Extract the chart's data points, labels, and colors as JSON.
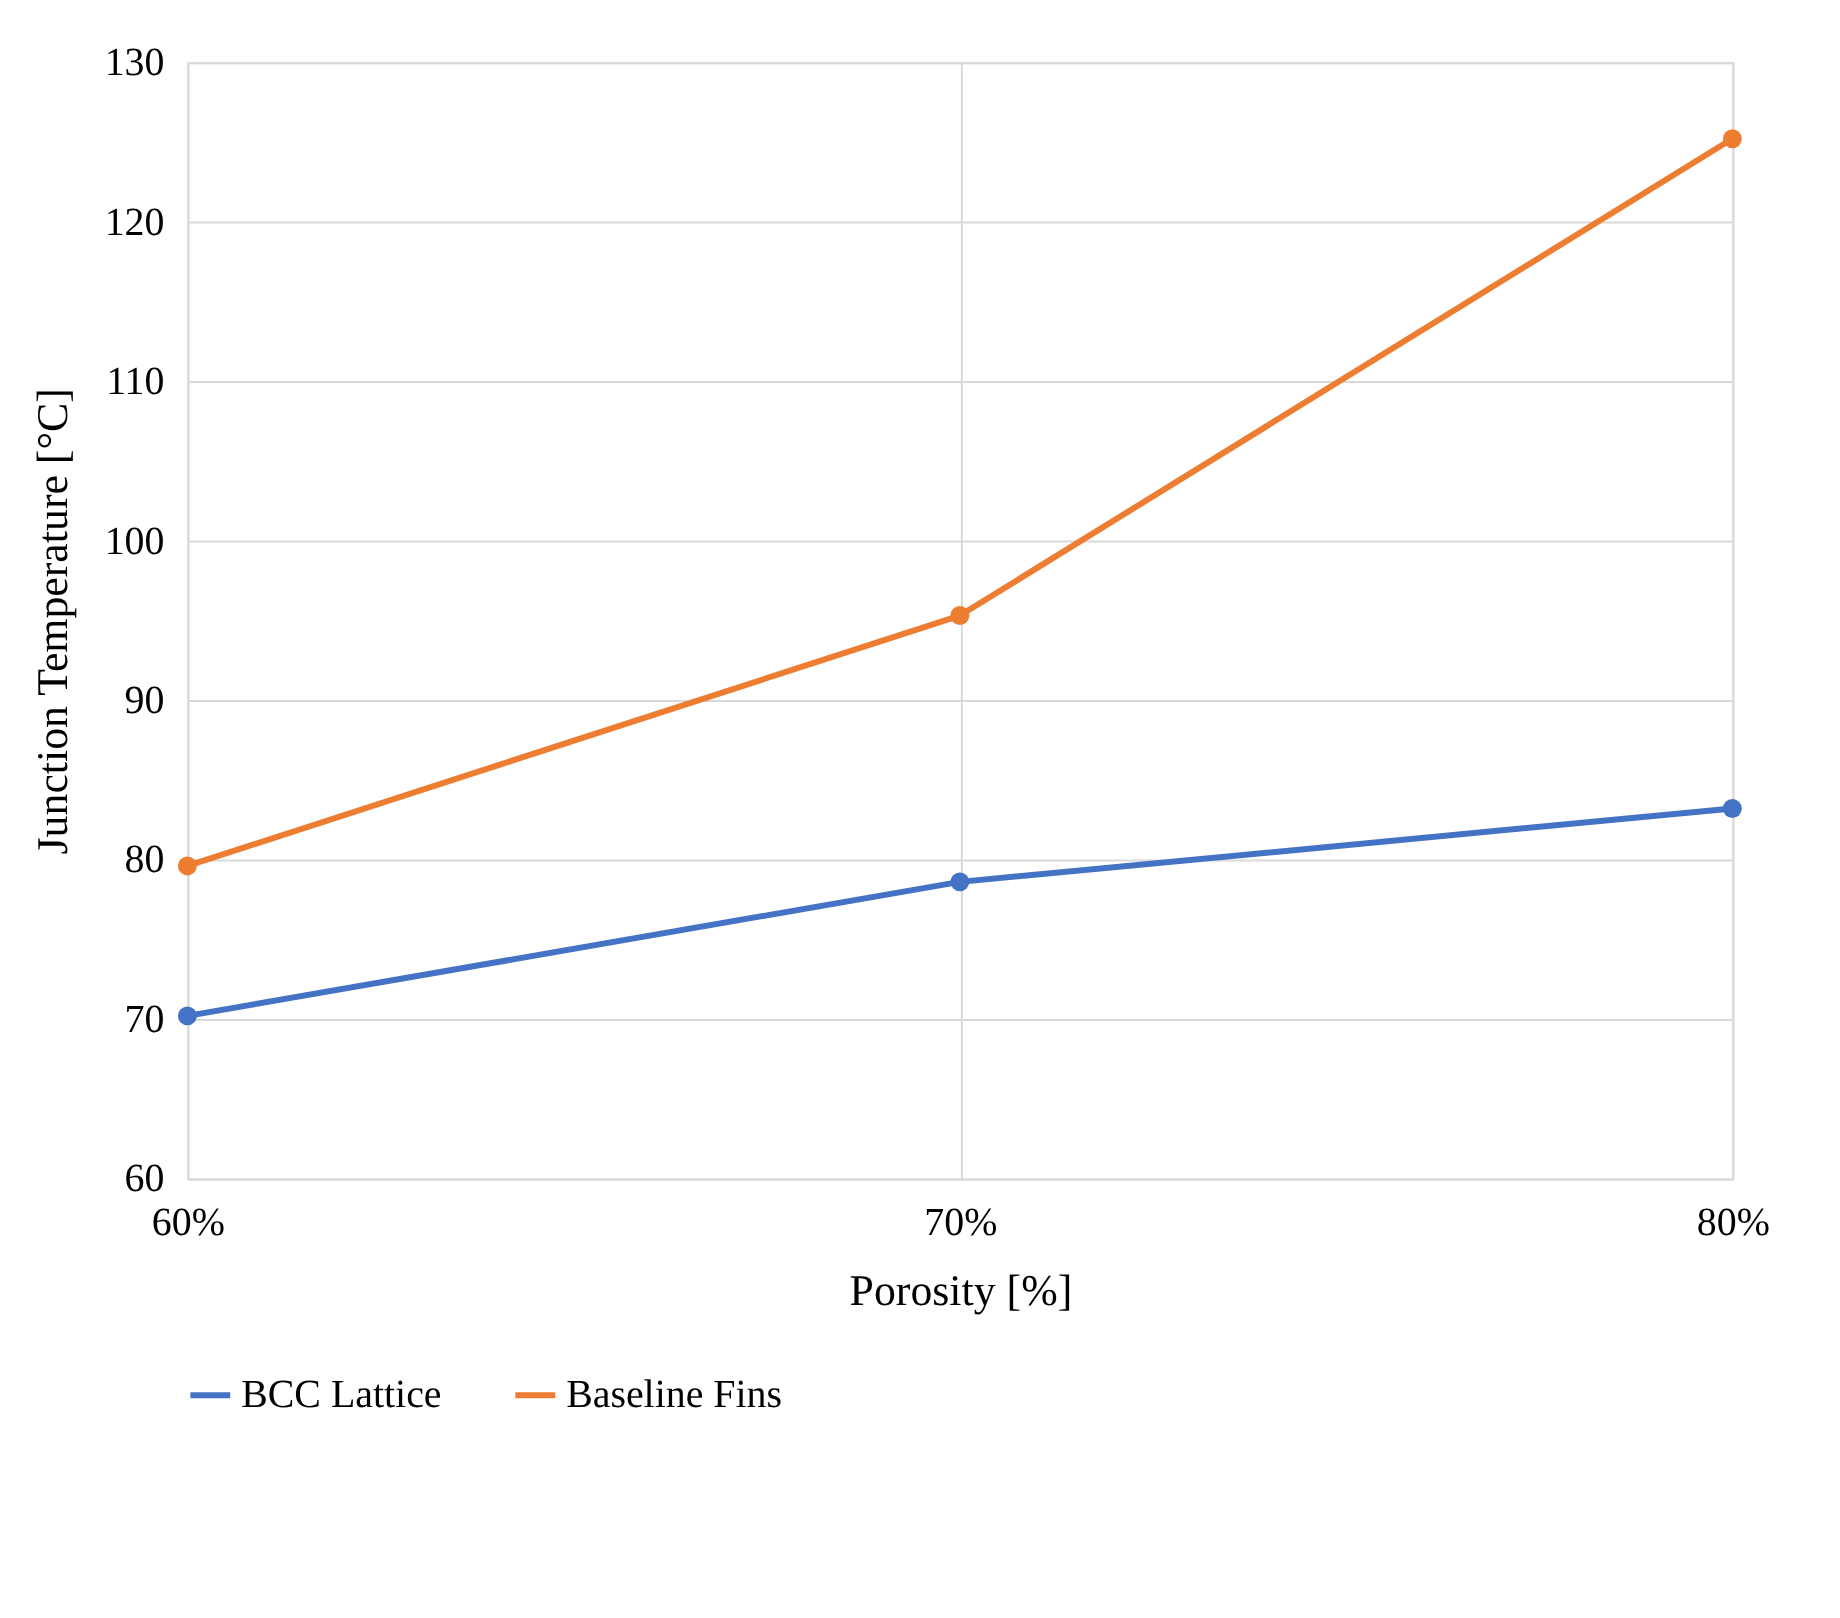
{
  "chart_data": {
    "type": "line",
    "xlabel": "Porosity  [%]",
    "ylabel": "Junction  Temperature  [°C]",
    "x": [
      60,
      70,
      80
    ],
    "series": [
      {
        "name": "BCC Lattice",
        "color": "#4472c4",
        "values": [
          70.2,
          78.6,
          83.2
        ]
      },
      {
        "name": "Baseline Fins",
        "color": "#ed7d31",
        "values": [
          79.6,
          95.3,
          125.2
        ]
      }
    ],
    "xlim": [
      60,
      80
    ],
    "xticks": [
      {
        "value": 60,
        "label": "60%"
      },
      {
        "value": 70,
        "label": "70%"
      },
      {
        "value": 80,
        "label": "80%"
      }
    ],
    "ylim": [
      60,
      130
    ],
    "yticks": [
      60,
      70,
      80,
      90,
      100,
      110,
      120,
      130
    ],
    "grid": true,
    "legend": "bottom",
    "marker": "circle",
    "line_style": "solid"
  }
}
